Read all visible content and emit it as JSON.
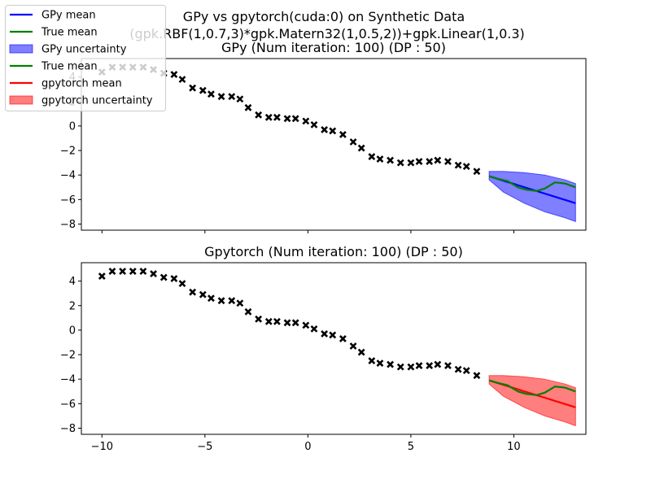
{
  "suptitle": {
    "line1": "GPy vs gpytorch(cuda:0) on Synthetic Data",
    "line2": "(gpk.RBF(1,0.7,3)*gpk.Matern32(1,0.5,2))+gpk.Linear(1,0.3)"
  },
  "legend": {
    "placement": "upper-left",
    "entries": [
      {
        "label": "GPy mean",
        "kind": "line",
        "color": "#0000ff"
      },
      {
        "label": "True mean",
        "kind": "line",
        "color": "#008000"
      },
      {
        "label": "GPy uncertainty",
        "kind": "patch",
        "color": "#0000ff"
      },
      {
        "label": "True mean",
        "kind": "line",
        "color": "#008000"
      },
      {
        "label": "gpytorch mean",
        "kind": "line",
        "color": "#ff0000"
      },
      {
        "label": "gpytorch uncertainty",
        "kind": "patch",
        "color": "#ff0000"
      }
    ]
  },
  "chart_data": [
    {
      "type": "line",
      "title": "GPy (Num iteration: 100) (DP : 50)",
      "xlabel": "",
      "ylabel": "",
      "xlim": [
        -11,
        13.5
      ],
      "ylim": [
        -8.5,
        5.5
      ],
      "xticks": [
        -10,
        -5,
        0,
        5,
        10
      ],
      "yticks": [
        4,
        2,
        0,
        -2,
        -4,
        -6,
        -8
      ],
      "show_xtick_labels": false,
      "grid": false,
      "observations": {
        "marker": "x",
        "color": "#000000",
        "x": [
          -10,
          -9.5,
          -9.0,
          -8.5,
          -8.0,
          -7.5,
          -7.0,
          -6.5,
          -6.1,
          -5.6,
          -5.1,
          -4.7,
          -4.2,
          -3.7,
          -3.3,
          -2.9,
          -2.4,
          -1.9,
          -1.5,
          -1.0,
          -0.6,
          -0.1,
          0.3,
          0.8,
          1.2,
          1.7,
          2.2,
          2.6,
          3.1,
          3.5,
          4.0,
          4.5,
          5.0,
          5.4,
          5.9,
          6.3,
          6.8,
          7.3,
          7.7,
          8.2
        ],
        "y": [
          4.4,
          4.8,
          4.8,
          4.8,
          4.8,
          4.6,
          4.3,
          4.2,
          3.8,
          3.1,
          2.9,
          2.6,
          2.4,
          2.4,
          2.2,
          1.5,
          0.9,
          0.7,
          0.7,
          0.6,
          0.6,
          0.4,
          0.1,
          -0.3,
          -0.4,
          -0.7,
          -1.3,
          -1.8,
          -2.5,
          -2.7,
          -2.8,
          -3.0,
          -3.0,
          -2.9,
          -2.9,
          -2.8,
          -2.9,
          -3.2,
          -3.3,
          -3.7
        ]
      },
      "series": [
        {
          "name": "GPy mean",
          "color": "#0000ff",
          "x": [
            8.8,
            13.0
          ],
          "y": [
            -4.1,
            -6.3
          ]
        },
        {
          "name": "True mean",
          "color": "#008000",
          "x": [
            8.8,
            9.2,
            9.7,
            10.2,
            10.6,
            11.1,
            11.5,
            12.0,
            12.5,
            13.0
          ],
          "y": [
            -4.1,
            -4.3,
            -4.5,
            -5.0,
            -5.2,
            -5.3,
            -5.1,
            -4.6,
            -4.7,
            -5.0
          ]
        }
      ],
      "band": {
        "name": "GPy uncertainty",
        "color": "#0000ff",
        "opacity": 0.5,
        "x": [
          8.8,
          9.5,
          10.5,
          11.5,
          12.5,
          13.0
        ],
        "upper": [
          -3.7,
          -3.7,
          -3.8,
          -4.0,
          -4.4,
          -4.7
        ],
        "lower": [
          -4.4,
          -5.4,
          -6.3,
          -7.0,
          -7.5,
          -7.8
        ]
      }
    },
    {
      "type": "line",
      "title": "Gpytorch (Num iteration: 100) (DP : 50)",
      "xlabel": "",
      "ylabel": "",
      "xlim": [
        -11,
        13.5
      ],
      "ylim": [
        -8.5,
        5.5
      ],
      "xticks": [
        -10,
        -5,
        0,
        5,
        10
      ],
      "yticks": [
        4,
        2,
        0,
        -2,
        -4,
        -6,
        -8
      ],
      "show_xtick_labels": true,
      "grid": false,
      "observations": {
        "marker": "x",
        "color": "#000000",
        "x": [
          -10,
          -9.5,
          -9.0,
          -8.5,
          -8.0,
          -7.5,
          -7.0,
          -6.5,
          -6.1,
          -5.6,
          -5.1,
          -4.7,
          -4.2,
          -3.7,
          -3.3,
          -2.9,
          -2.4,
          -1.9,
          -1.5,
          -1.0,
          -0.6,
          -0.1,
          0.3,
          0.8,
          1.2,
          1.7,
          2.2,
          2.6,
          3.1,
          3.5,
          4.0,
          4.5,
          5.0,
          5.4,
          5.9,
          6.3,
          6.8,
          7.3,
          7.7,
          8.2
        ],
        "y": [
          4.4,
          4.8,
          4.8,
          4.8,
          4.8,
          4.6,
          4.3,
          4.2,
          3.8,
          3.1,
          2.9,
          2.6,
          2.4,
          2.4,
          2.2,
          1.5,
          0.9,
          0.7,
          0.7,
          0.6,
          0.6,
          0.4,
          0.1,
          -0.3,
          -0.4,
          -0.7,
          -1.3,
          -1.8,
          -2.5,
          -2.7,
          -2.8,
          -3.0,
          -3.0,
          -2.9,
          -2.9,
          -2.8,
          -2.9,
          -3.2,
          -3.3,
          -3.7
        ]
      },
      "series": [
        {
          "name": "gpytorch mean",
          "color": "#ff0000",
          "x": [
            8.8,
            13.0
          ],
          "y": [
            -4.1,
            -6.3
          ]
        },
        {
          "name": "True mean",
          "color": "#008000",
          "x": [
            8.8,
            9.2,
            9.7,
            10.2,
            10.6,
            11.1,
            11.5,
            12.0,
            12.5,
            13.0
          ],
          "y": [
            -4.1,
            -4.3,
            -4.5,
            -5.0,
            -5.2,
            -5.3,
            -5.1,
            -4.6,
            -4.7,
            -5.0
          ]
        }
      ],
      "band": {
        "name": "gpytorch uncertainty",
        "color": "#ff0000",
        "opacity": 0.5,
        "x": [
          8.8,
          9.5,
          10.5,
          11.5,
          12.5,
          13.0
        ],
        "upper": [
          -3.7,
          -3.7,
          -3.8,
          -4.0,
          -4.4,
          -4.7
        ],
        "lower": [
          -4.4,
          -5.4,
          -6.3,
          -7.0,
          -7.5,
          -7.8
        ]
      }
    }
  ]
}
